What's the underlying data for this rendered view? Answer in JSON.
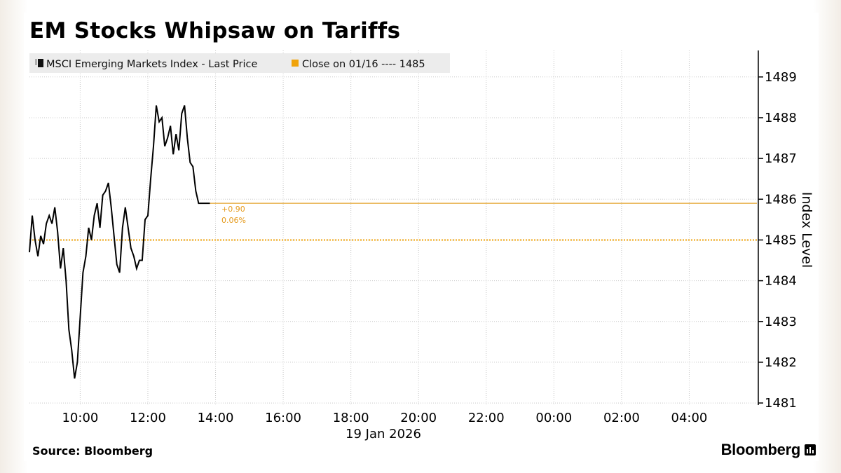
{
  "title": "EM Stocks Whipsaw on Tariffs",
  "legend": {
    "series_label": "MSCI Emerging Markets Index - Last Price",
    "close_label": "Close on 01/16 ---- 1485"
  },
  "annotation": {
    "change_abs": "+0.90",
    "change_pct": "0.06%"
  },
  "axis": {
    "y_title": "Index Level",
    "date_label": "19 Jan 2026"
  },
  "source": "Source: Bloomberg",
  "brand": "Bloomberg",
  "colors": {
    "series": "#000000",
    "close_line": "#f0a30a",
    "last_line": "#e8b04a",
    "grid": "#c8c8c8",
    "legend_bg": "#ececec"
  },
  "chart_data": {
    "type": "line",
    "title": "EM Stocks Whipsaw on Tariffs",
    "xlabel": "",
    "ylabel": "Index Level",
    "ylim": [
      1480.95,
      1489.65
    ],
    "y_ticks": [
      1481,
      1482,
      1483,
      1484,
      1485,
      1486,
      1487,
      1488,
      1489
    ],
    "x_range": [
      "08:30",
      "06:00"
    ],
    "x_ticks": [
      "10:00",
      "12:00",
      "14:00",
      "16:00",
      "18:00",
      "20:00",
      "22:00",
      "00:00",
      "02:00",
      "04:00"
    ],
    "x_date": "19 Jan 2026",
    "grid": true,
    "legend_position": "top-left",
    "series": [
      {
        "name": "MSCI Emerging Markets Index - Last Price",
        "x": [
          "08:30",
          "08:35",
          "08:40",
          "08:45",
          "08:50",
          "08:55",
          "09:00",
          "09:05",
          "09:10",
          "09:15",
          "09:20",
          "09:25",
          "09:30",
          "09:35",
          "09:40",
          "09:45",
          "09:50",
          "09:55",
          "10:00",
          "10:05",
          "10:10",
          "10:15",
          "10:20",
          "10:25",
          "10:30",
          "10:35",
          "10:40",
          "10:45",
          "10:50",
          "10:55",
          "11:00",
          "11:05",
          "11:10",
          "11:15",
          "11:20",
          "11:25",
          "11:30",
          "11:35",
          "11:40",
          "11:45",
          "11:50",
          "11:55",
          "12:00",
          "12:05",
          "12:10",
          "12:15",
          "12:20",
          "12:25",
          "12:30",
          "12:35",
          "12:40",
          "12:45",
          "12:50",
          "12:55",
          "13:00",
          "13:05",
          "13:10",
          "13:15",
          "13:20",
          "13:25",
          "13:30",
          "13:35",
          "13:40",
          "13:45",
          "13:50"
        ],
        "y": [
          1484.7,
          1485.6,
          1485.0,
          1484.6,
          1485.1,
          1484.9,
          1485.4,
          1485.6,
          1485.4,
          1485.8,
          1485.2,
          1484.3,
          1484.8,
          1484.0,
          1482.8,
          1482.3,
          1481.6,
          1482.0,
          1483.1,
          1484.2,
          1484.6,
          1485.3,
          1485.0,
          1485.6,
          1485.9,
          1485.3,
          1486.1,
          1486.2,
          1486.4,
          1485.8,
          1485.1,
          1484.4,
          1484.2,
          1485.3,
          1485.8,
          1485.3,
          1484.8,
          1484.6,
          1484.3,
          1484.5,
          1484.5,
          1485.5,
          1485.6,
          1486.5,
          1487.3,
          1488.3,
          1487.9,
          1488.0,
          1487.3,
          1487.5,
          1487.8,
          1487.1,
          1487.6,
          1487.2,
          1488.1,
          1488.3,
          1487.5,
          1486.9,
          1486.8,
          1486.2,
          1485.9,
          1485.9,
          1485.9,
          1485.9,
          1485.9
        ],
        "visible_until": "13:50"
      }
    ],
    "reference_lines": [
      {
        "label": "Close on 01/16",
        "value": 1485
      },
      {
        "label": "Last price",
        "value": 1485.9
      }
    ]
  }
}
